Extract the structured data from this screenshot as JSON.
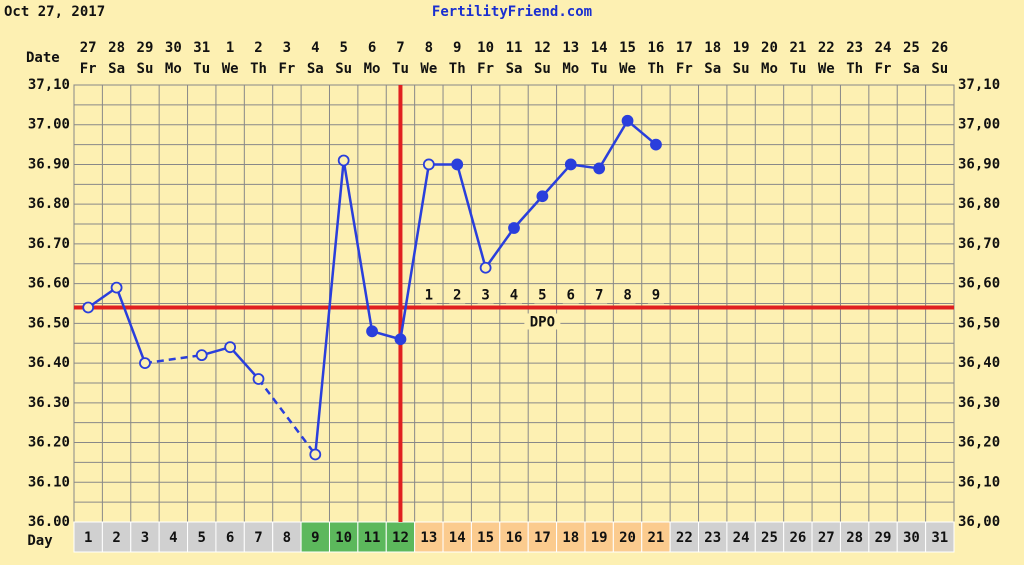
{
  "chart_data": {
    "type": "line",
    "date_label": "Oct 27, 2017",
    "site": "FertilityFriend.com",
    "row_date_label": "Date",
    "row_day_label": "Day",
    "dates": [
      "27",
      "28",
      "29",
      "30",
      "31",
      "1",
      "2",
      "3",
      "4",
      "5",
      "6",
      "7",
      "8",
      "9",
      "10",
      "11",
      "12",
      "13",
      "14",
      "15",
      "16",
      "17",
      "18",
      "19",
      "20",
      "21",
      "22",
      "23",
      "24",
      "25",
      "26"
    ],
    "weekdays": [
      "Fr",
      "Sa",
      "Su",
      "Mo",
      "Tu",
      "We",
      "Th",
      "Fr",
      "Sa",
      "Su",
      "Mo",
      "Tu",
      "We",
      "Th",
      "Fr",
      "Sa",
      "Su",
      "Mo",
      "Tu",
      "We",
      "Th",
      "Fr",
      "Sa",
      "Su",
      "Mo",
      "Tu",
      "We",
      "Th",
      "Fr",
      "Sa",
      "Su"
    ],
    "days": [
      1,
      2,
      3,
      4,
      5,
      6,
      7,
      8,
      9,
      10,
      11,
      12,
      13,
      14,
      15,
      16,
      17,
      18,
      19,
      20,
      21,
      22,
      23,
      24,
      25,
      26,
      27,
      28,
      29,
      30,
      31
    ],
    "day_colors": [
      "#d0d0d0",
      "#d0d0d0",
      "#d0d0d0",
      "#d0d0d0",
      "#d0d0d0",
      "#d0d0d0",
      "#d0d0d0",
      "#d0d0d0",
      "#5cb85c",
      "#5cb85c",
      "#5cb85c",
      "#5cb85c",
      "#fbcb8e",
      "#fbcb8e",
      "#fbcb8e",
      "#fbcb8e",
      "#fbcb8e",
      "#fbcb8e",
      "#fbcb8e",
      "#fbcb8e",
      "#fbcb8e",
      "#d0d0d0",
      "#d0d0d0",
      "#d0d0d0",
      "#d0d0d0",
      "#d0d0d0",
      "#d0d0d0",
      "#d0d0d0",
      "#d0d0d0",
      "#d0d0d0",
      "#d0d0d0"
    ],
    "series": [
      {
        "name": "Temperature",
        "color": "#2a3fdc",
        "values": [
          36.54,
          36.59,
          36.4,
          null,
          36.42,
          36.44,
          36.36,
          null,
          36.17,
          36.91,
          36.48,
          36.46,
          36.9,
          36.9,
          36.64,
          36.74,
          36.82,
          36.9,
          36.89,
          37.01,
          36.95,
          null,
          null,
          null,
          null,
          null,
          null,
          null,
          null,
          null,
          null
        ],
        "filled": [
          false,
          false,
          false,
          null,
          false,
          false,
          false,
          null,
          false,
          false,
          true,
          true,
          false,
          true,
          false,
          true,
          true,
          true,
          true,
          true,
          true,
          null,
          null,
          null,
          null,
          null,
          null,
          null,
          null,
          null,
          null
        ]
      }
    ],
    "coverline": 36.54,
    "line_color": "#e02020",
    "ovulation_day": 12,
    "dpo_label": "DPO",
    "dpo": [
      1,
      2,
      3,
      4,
      5,
      6,
      7,
      8,
      9
    ],
    "ylim": [
      36.0,
      37.1
    ],
    "yticks": [
      {
        "value": 36.0,
        "label": "36.00"
      },
      {
        "value": 36.1,
        "label": "36.10"
      },
      {
        "value": 36.2,
        "label": "36.20"
      },
      {
        "value": 36.3,
        "label": "36.30"
      },
      {
        "value": 36.4,
        "label": "36.40"
      },
      {
        "value": 36.5,
        "label": "36.50"
      },
      {
        "value": 36.6,
        "label": "36.60"
      },
      {
        "value": 36.7,
        "label": "36.70"
      },
      {
        "value": 36.8,
        "label": "36.80"
      },
      {
        "value": 36.9,
        "label": "36.90"
      },
      {
        "value": 37.0,
        "label": "37.00"
      },
      {
        "value": 37.1,
        "label": "37,10"
      }
    ],
    "y2lim": [
      36.0,
      37.1
    ],
    "y2ticks": [
      {
        "value": 36.0,
        "label": "36,00"
      },
      {
        "value": 36.1,
        "label": "36,10"
      },
      {
        "value": 36.2,
        "label": "36,20"
      },
      {
        "value": 36.3,
        "label": "36,30"
      },
      {
        "value": 36.4,
        "label": "36,40"
      },
      {
        "value": 36.5,
        "label": "36,50"
      },
      {
        "value": 36.6,
        "label": "36,60"
      },
      {
        "value": 36.7,
        "label": "36,70"
      },
      {
        "value": 36.8,
        "label": "36,80"
      },
      {
        "value": 36.9,
        "label": "36,90"
      },
      {
        "value": 37.0,
        "label": "37,00"
      },
      {
        "value": 37.1,
        "label": "37,10"
      }
    ],
    "grid": true
  }
}
